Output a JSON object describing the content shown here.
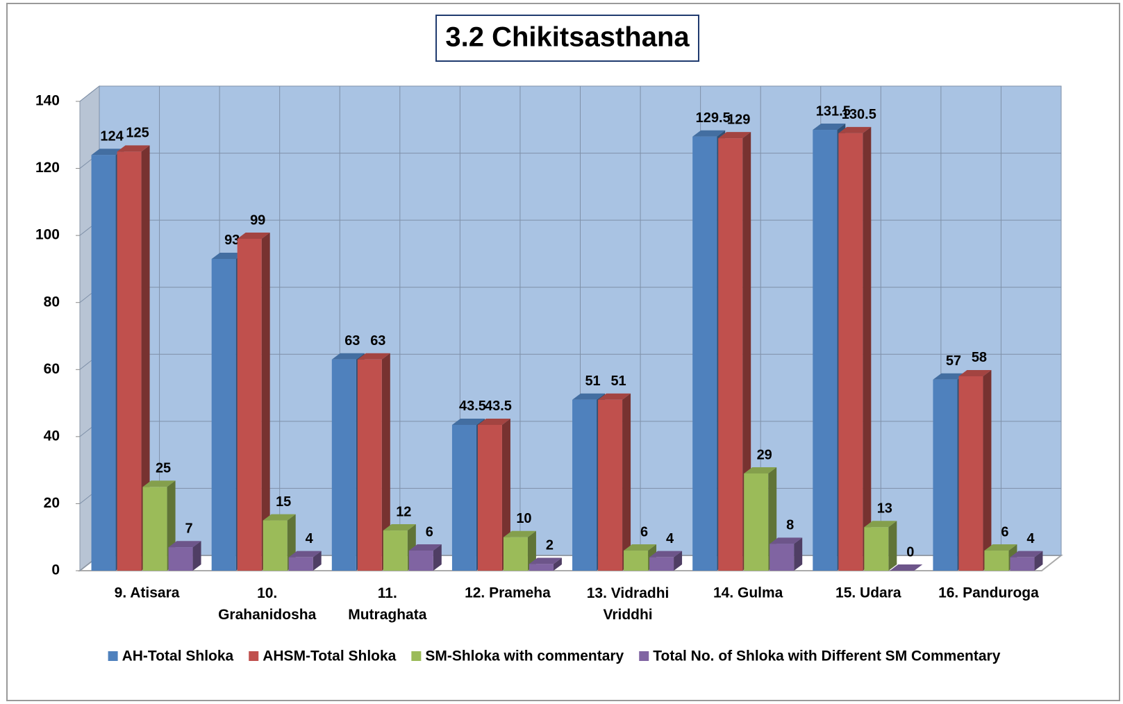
{
  "chart_data": {
    "type": "bar3d",
    "title": "3.2 Chikitsasthana",
    "categories": [
      "9. Atisara",
      "10. Grahanidosha",
      "11. Mutraghata",
      "12. Prameha",
      "13. Vidradhi Vriddhi",
      "14. Gulma",
      "15. Udara",
      "16. Panduroga"
    ],
    "series": [
      {
        "name": "AH-Total Shloka",
        "color": "#4f81bd",
        "values": [
          124,
          93,
          63,
          43.5,
          51,
          129.5,
          131.5,
          57
        ]
      },
      {
        "name": "AHSM-Total Shloka",
        "color": "#c0504d",
        "values": [
          125,
          99,
          63,
          43.5,
          51,
          129,
          130.5,
          58
        ]
      },
      {
        "name": "SM-Shloka with commentary",
        "color": "#9bbb59",
        "values": [
          25,
          15,
          12,
          10,
          6,
          29,
          13,
          6
        ]
      },
      {
        "name": "Total No. of Shloka with Different SM Commentary",
        "color": "#8064a2",
        "values": [
          7,
          4,
          6,
          2,
          4,
          8,
          0,
          4
        ]
      }
    ],
    "ylim": [
      0,
      140
    ],
    "yticks": [
      0,
      20,
      40,
      60,
      80,
      100,
      120,
      140
    ],
    "grid": true,
    "legend": "bottom"
  }
}
